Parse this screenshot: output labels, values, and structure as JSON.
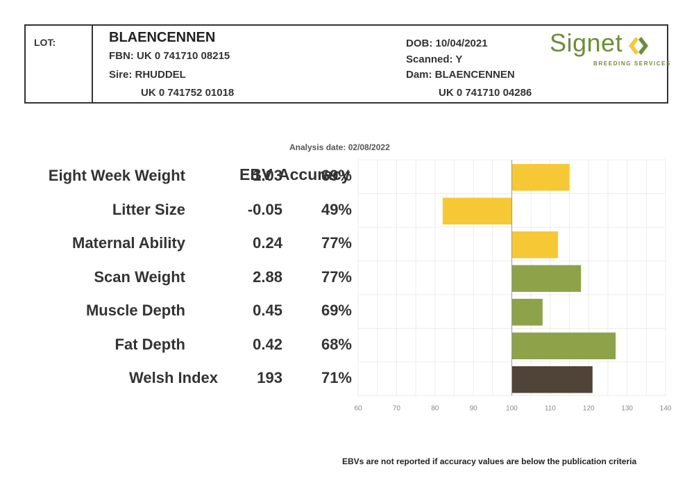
{
  "header": {
    "lot_label": "LOT:",
    "name": "BLAENCENNEN",
    "fbn": "FBN: UK 0 741710 08215",
    "sire": "Sire: RHUDDEL",
    "sire_id": "UK 0 741752 01018",
    "dob": "DOB: 10/04/2021",
    "scanned": "Scanned: Y",
    "dam": "Dam: BLAENCENNEN",
    "dam_id": "UK 0 741710 04286",
    "logo_word": "Signet",
    "logo_sub": "BREEDING SERVICES"
  },
  "analysis_date": "Analysis date: 02/08/2022",
  "columns": {
    "ebv": "EBV",
    "accuracy": "Accuracy"
  },
  "footnote": "EBVs are not reported if accuracy values are below the publication criteria",
  "colors": {
    "maternal": "#f7c836",
    "growth": "#8ea24a",
    "index": "#4f4437",
    "logo": "#6e8d38"
  },
  "chart_data": {
    "type": "bar",
    "orientation": "horizontal",
    "categories": [
      "Eight Week Weight",
      "Litter Size",
      "Maternal Ability",
      "Scan Weight",
      "Muscle Depth",
      "Fat Depth",
      "Welsh Index"
    ],
    "ebv_labels": [
      "1.03",
      "-0.05",
      "0.24",
      "2.88",
      "0.45",
      "0.42",
      "193"
    ],
    "accuracy_labels": [
      "69%",
      "49%",
      "77%",
      "77%",
      "69%",
      "68%",
      "71%"
    ],
    "values": [
      115,
      82,
      112,
      118,
      108,
      127,
      121
    ],
    "baseline": 100,
    "xlim": [
      60,
      140
    ],
    "xticks": [
      "60",
      "70",
      "80",
      "90",
      "100",
      "110",
      "120",
      "130",
      "140"
    ],
    "bar_colors": [
      "#f7c836",
      "#f7c836",
      "#f7c836",
      "#8ea24a",
      "#8ea24a",
      "#8ea24a",
      "#4f4437"
    ],
    "grid": true
  }
}
